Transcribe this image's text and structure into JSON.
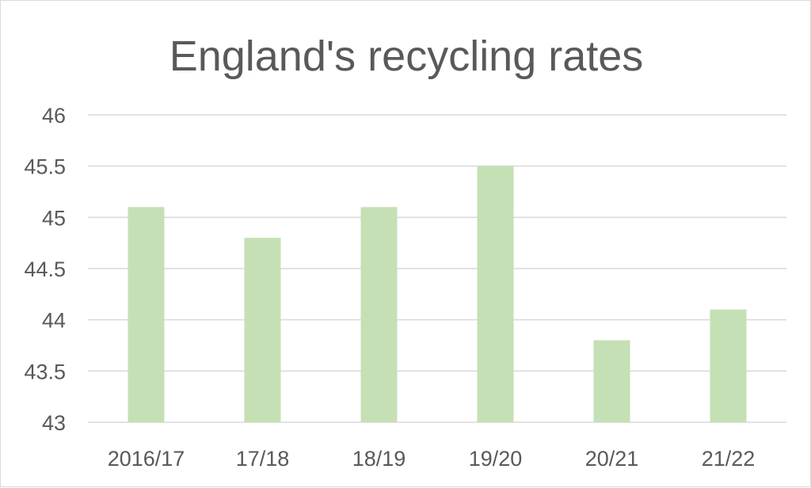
{
  "chart_data": {
    "type": "bar",
    "title": "England's recycling rates",
    "categories": [
      "2016/17",
      "17/18",
      "18/19",
      "19/20",
      "20/21",
      "21/22"
    ],
    "values": [
      45.1,
      44.8,
      45.1,
      45.5,
      43.8,
      44.1
    ],
    "xlabel": "",
    "ylabel": "",
    "ylim": [
      43,
      46
    ],
    "yticks": [
      "43",
      "43.5",
      "44",
      "44.5",
      "45",
      "45.5",
      "46"
    ],
    "grid": true,
    "legend": "none",
    "bar_color": "#c5e0b4"
  }
}
